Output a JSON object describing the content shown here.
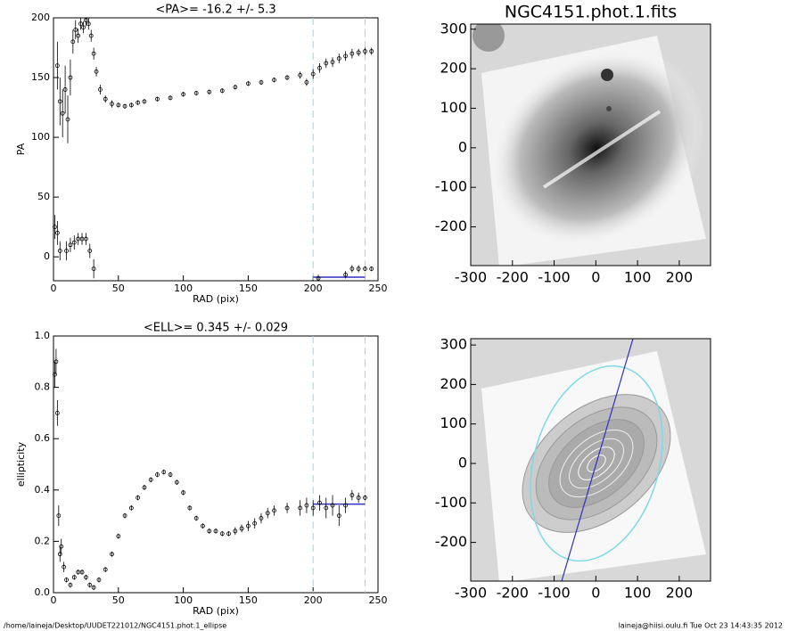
{
  "chart_data": [
    {
      "type": "scatter",
      "title": "<PA>= -16.2 +/-   5.3",
      "xlabel": "RAD (pix)",
      "ylabel": "PA",
      "xlim": [
        0,
        250
      ],
      "ylim": [
        -20,
        200
      ],
      "xticks": [
        0,
        50,
        100,
        150,
        200,
        250
      ],
      "yticks": [
        0,
        50,
        100,
        150,
        200
      ],
      "series": [
        {
          "color": "#000000",
          "x": [
            3,
            5,
            7,
            9,
            11,
            13,
            15,
            17,
            19,
            21,
            23,
            25,
            27,
            29,
            31,
            33,
            36,
            40,
            45,
            50,
            55,
            60,
            65,
            70,
            80,
            90,
            100,
            110,
            120,
            130,
            140,
            150,
            160,
            170,
            180,
            190,
            195,
            200,
            205,
            210,
            215,
            220,
            225,
            230,
            235,
            240,
            245
          ],
          "values": [
            160,
            130,
            120,
            140,
            115,
            150,
            180,
            190,
            185,
            195,
            192,
            198,
            195,
            185,
            170,
            155,
            140,
            132,
            128,
            127,
            126,
            127,
            129,
            130,
            132,
            133,
            136,
            137,
            138,
            139,
            142,
            145,
            146,
            148,
            150,
            152,
            146,
            153,
            158,
            162,
            163,
            166,
            168,
            170,
            171,
            172,
            172
          ],
          "errors": [
            20,
            20,
            20,
            20,
            20,
            15,
            10,
            8,
            6,
            5,
            5,
            5,
            5,
            5,
            5,
            4,
            4,
            3,
            3,
            2,
            2,
            2,
            2,
            2,
            2,
            2,
            2,
            2,
            2,
            2,
            2,
            2,
            2,
            2,
            2,
            3,
            3,
            4,
            4,
            4,
            4,
            4,
            4,
            4,
            3,
            3,
            3
          ]
        },
        {
          "color": "#000000",
          "x": [
            1,
            3,
            5,
            10,
            13,
            16,
            19,
            22,
            25,
            28,
            31,
            204,
            225,
            230,
            235,
            240,
            245
          ],
          "values": [
            25,
            20,
            5,
            5,
            10,
            12,
            15,
            15,
            15,
            5,
            -10,
            -18,
            -15,
            -10,
            -10,
            -10,
            -10
          ],
          "errors": [
            10,
            10,
            8,
            8,
            6,
            6,
            5,
            5,
            5,
            6,
            8,
            3,
            3,
            3,
            3,
            2,
            2
          ]
        }
      ],
      "vlines": {
        "values": [
          200,
          240
        ],
        "color": "#8fdbe8"
      },
      "hline": {
        "x": [
          200,
          240
        ],
        "y": -17,
        "color": "#3030c0"
      }
    },
    {
      "type": "scatter",
      "title": "<ELL>= 0.345 +/-  0.029",
      "xlabel": "RAD (pix)",
      "ylabel": "ellipticity",
      "xlim": [
        0,
        250
      ],
      "ylim": [
        0,
        1
      ],
      "xticks": [
        0,
        50,
        100,
        150,
        200,
        250
      ],
      "yticks": [
        {
          "value": 0,
          "label": "0.0"
        },
        0.2,
        0.4,
        0.6,
        0.8,
        {
          "value": 1,
          "label": "1.0"
        }
      ],
      "series": [
        {
          "color": "#000000",
          "x": [
            1,
            2,
            3,
            4,
            5,
            6,
            8,
            10,
            13,
            16,
            19,
            22,
            25,
            28,
            31,
            35,
            40,
            45,
            50,
            55,
            60,
            65,
            70,
            75,
            80,
            85,
            90,
            95,
            100,
            105,
            110,
            115,
            120,
            125,
            130,
            135,
            140,
            145,
            150,
            155,
            160,
            165,
            170,
            180,
            190,
            195,
            200,
            205,
            210,
            215,
            220,
            225,
            230,
            235,
            240
          ],
          "values": [
            0.85,
            0.9,
            0.7,
            0.3,
            0.15,
            0.18,
            0.1,
            0.05,
            0.03,
            0.06,
            0.08,
            0.08,
            0.06,
            0.03,
            0.02,
            0.05,
            0.09,
            0.15,
            0.22,
            0.3,
            0.33,
            0.37,
            0.41,
            0.44,
            0.46,
            0.47,
            0.46,
            0.43,
            0.39,
            0.33,
            0.29,
            0.26,
            0.24,
            0.24,
            0.23,
            0.23,
            0.24,
            0.25,
            0.26,
            0.27,
            0.29,
            0.31,
            0.32,
            0.33,
            0.33,
            0.34,
            0.33,
            0.35,
            0.33,
            0.34,
            0.3,
            0.34,
            0.38,
            0.37,
            0.37
          ],
          "errors": [
            0.05,
            0.05,
            0.05,
            0.04,
            0.03,
            0.03,
            0.02,
            0.01,
            0.01,
            0.01,
            0.01,
            0.01,
            0.01,
            0.01,
            0.01,
            0.01,
            0.01,
            0.01,
            0.01,
            0.01,
            0.01,
            0.01,
            0.01,
            0.01,
            0.01,
            0.01,
            0.01,
            0.01,
            0.01,
            0.01,
            0.01,
            0.01,
            0.01,
            0.01,
            0.01,
            0.01,
            0.015,
            0.015,
            0.02,
            0.02,
            0.02,
            0.02,
            0.02,
            0.02,
            0.03,
            0.03,
            0.03,
            0.03,
            0.04,
            0.04,
            0.04,
            0.03,
            0.02,
            0.02,
            0.01
          ]
        }
      ],
      "vlines": {
        "values": [
          200,
          240
        ],
        "color": "#8fdbe8"
      },
      "hline": {
        "x": [
          200,
          240
        ],
        "y": 0.345,
        "color": "#3030c0"
      }
    },
    {
      "type": "image",
      "title": "NGC4151.phot.1.fits",
      "xlim": [
        -300,
        275
      ],
      "ylim": [
        -298,
        313
      ],
      "xticks": [
        -300,
        -200,
        -100,
        0,
        100,
        200
      ],
      "yticks": [
        -200,
        -100,
        0,
        100,
        200,
        300
      ]
    },
    {
      "type": "image",
      "xlim": [
        -300,
        275
      ],
      "ylim": [
        -298,
        316
      ],
      "xticks": [
        -300,
        -200,
        -100,
        0,
        100,
        200
      ],
      "yticks": [
        -200,
        -100,
        0,
        100,
        200,
        300
      ]
    }
  ],
  "footer": {
    "left": "/home/laineja/Desktop/UUDET221012/NGC4151.phot.1_ellipse",
    "right": "laineja@hiisi.oulu.fi  Tue Oct 23 14:43:35 2012"
  }
}
